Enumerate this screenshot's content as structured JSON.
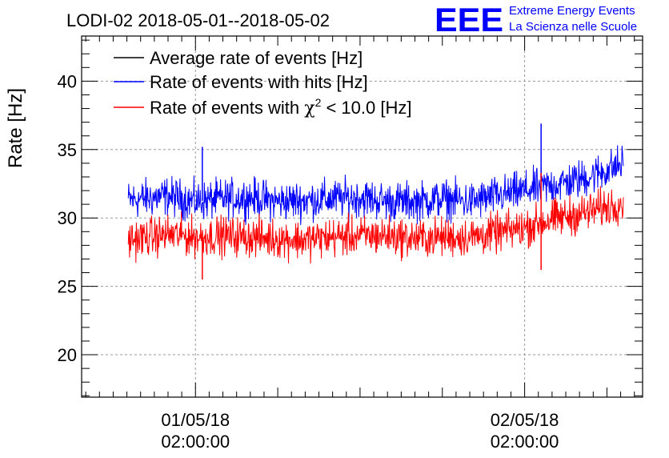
{
  "chart_data": {
    "type": "line",
    "title": "LODI-02 2018-05-01--2018-05-02",
    "ylabel": "Rate [Hz]",
    "xlabel": "",
    "ylim": [
      16.9,
      43.3
    ],
    "yticks": [
      20,
      25,
      30,
      35,
      40
    ],
    "grid": true,
    "legend_position": "top-left",
    "x_unit": "hours since 2018-05-01 00:00:00",
    "xlim": [
      -6.3,
      34.6
    ],
    "xticks": [
      {
        "value": 2,
        "label_date": "01/05/18",
        "label_time": "02:00:00"
      },
      {
        "value": 26,
        "label_date": "02/05/18",
        "label_time": "02:00:00"
      }
    ],
    "series": [
      {
        "name": "Average rate of events [Hz]",
        "color": "#000000",
        "x": [],
        "y": []
      },
      {
        "name": "Rate of events with hits [Hz]",
        "color": "#0000ff",
        "x": [
          -2.9,
          0,
          2,
          4,
          6,
          8,
          10,
          12,
          14,
          16,
          18,
          20,
          22,
          24,
          26,
          28,
          30,
          32,
          33.2
        ],
        "y": [
          31.3,
          31.6,
          31.2,
          31.4,
          31.5,
          31.2,
          31.3,
          31.4,
          31.5,
          31.2,
          31.2,
          31.4,
          31.2,
          31.6,
          32.0,
          32.4,
          32.8,
          33.5,
          34.0
        ]
      },
      {
        "name": "Rate of events with χ² < 10.0 [Hz]",
        "color": "#ff0000",
        "x": [
          -2.9,
          0,
          2,
          4,
          6,
          8,
          10,
          12,
          14,
          16,
          18,
          20,
          22,
          24,
          26,
          28,
          30,
          32,
          33.2
        ],
        "y": [
          28.4,
          28.8,
          28.6,
          28.7,
          28.6,
          28.5,
          28.4,
          28.6,
          28.7,
          28.7,
          28.5,
          28.6,
          28.6,
          28.9,
          29.3,
          29.9,
          30.3,
          30.8,
          31.2
        ]
      }
    ],
    "spikes": [
      {
        "series": 1,
        "x": 2.5,
        "y": 35.2
      },
      {
        "series": 1,
        "x": 27.2,
        "y": 36.9
      },
      {
        "series": 2,
        "x": 2.5,
        "y": 25.5
      },
      {
        "series": 2,
        "x": 27.2,
        "y": 26.2
      },
      {
        "series": 2,
        "x": 27.2,
        "y": 33.3
      }
    ],
    "noise_amplitude_hz": 1.0
  },
  "logo": {
    "mark": "EEE",
    "line1": "Extreme Energy Events",
    "line2": "La Scienza nelle Scuole",
    "color": "#0000ff"
  },
  "legend_items": [
    {
      "label": "Average rate of events [Hz]",
      "color": "#000000"
    },
    {
      "label": "Rate of events with hits [Hz]",
      "color": "#0000ff"
    }
  ],
  "legend_chi2": {
    "prefix": "Rate of events with ",
    "symbol": "χ",
    "sup": "2",
    "suffix": " < 10.0 [Hz]",
    "color": "#ff0000"
  }
}
